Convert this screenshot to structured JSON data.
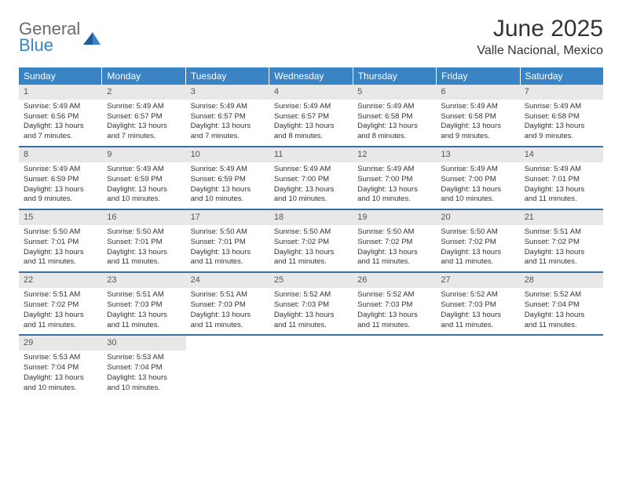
{
  "logo": {
    "general": "General",
    "blue": "Blue"
  },
  "title": "June 2025",
  "location": "Valle Nacional, Mexico",
  "colors": {
    "header_bg": "#3a84c5",
    "header_text": "#ffffff",
    "daynum_bg": "#e8e8e8",
    "row_border": "#3a6ea5",
    "text": "#333333",
    "logo_gray": "#6b6b6b",
    "logo_blue": "#3a84c5"
  },
  "day_names": [
    "Sunday",
    "Monday",
    "Tuesday",
    "Wednesday",
    "Thursday",
    "Friday",
    "Saturday"
  ],
  "weeks": [
    [
      {
        "n": "1",
        "sunrise": "5:49 AM",
        "sunset": "6:56 PM",
        "day_h": "13",
        "day_m": "7"
      },
      {
        "n": "2",
        "sunrise": "5:49 AM",
        "sunset": "6:57 PM",
        "day_h": "13",
        "day_m": "7"
      },
      {
        "n": "3",
        "sunrise": "5:49 AM",
        "sunset": "6:57 PM",
        "day_h": "13",
        "day_m": "7"
      },
      {
        "n": "4",
        "sunrise": "5:49 AM",
        "sunset": "6:57 PM",
        "day_h": "13",
        "day_m": "8"
      },
      {
        "n": "5",
        "sunrise": "5:49 AM",
        "sunset": "6:58 PM",
        "day_h": "13",
        "day_m": "8"
      },
      {
        "n": "6",
        "sunrise": "5:49 AM",
        "sunset": "6:58 PM",
        "day_h": "13",
        "day_m": "9"
      },
      {
        "n": "7",
        "sunrise": "5:49 AM",
        "sunset": "6:58 PM",
        "day_h": "13",
        "day_m": "9"
      }
    ],
    [
      {
        "n": "8",
        "sunrise": "5:49 AM",
        "sunset": "6:59 PM",
        "day_h": "13",
        "day_m": "9"
      },
      {
        "n": "9",
        "sunrise": "5:49 AM",
        "sunset": "6:59 PM",
        "day_h": "13",
        "day_m": "10"
      },
      {
        "n": "10",
        "sunrise": "5:49 AM",
        "sunset": "6:59 PM",
        "day_h": "13",
        "day_m": "10"
      },
      {
        "n": "11",
        "sunrise": "5:49 AM",
        "sunset": "7:00 PM",
        "day_h": "13",
        "day_m": "10"
      },
      {
        "n": "12",
        "sunrise": "5:49 AM",
        "sunset": "7:00 PM",
        "day_h": "13",
        "day_m": "10"
      },
      {
        "n": "13",
        "sunrise": "5:49 AM",
        "sunset": "7:00 PM",
        "day_h": "13",
        "day_m": "10"
      },
      {
        "n": "14",
        "sunrise": "5:49 AM",
        "sunset": "7:01 PM",
        "day_h": "13",
        "day_m": "11"
      }
    ],
    [
      {
        "n": "15",
        "sunrise": "5:50 AM",
        "sunset": "7:01 PM",
        "day_h": "13",
        "day_m": "11"
      },
      {
        "n": "16",
        "sunrise": "5:50 AM",
        "sunset": "7:01 PM",
        "day_h": "13",
        "day_m": "11"
      },
      {
        "n": "17",
        "sunrise": "5:50 AM",
        "sunset": "7:01 PM",
        "day_h": "13",
        "day_m": "11"
      },
      {
        "n": "18",
        "sunrise": "5:50 AM",
        "sunset": "7:02 PM",
        "day_h": "13",
        "day_m": "11"
      },
      {
        "n": "19",
        "sunrise": "5:50 AM",
        "sunset": "7:02 PM",
        "day_h": "13",
        "day_m": "11"
      },
      {
        "n": "20",
        "sunrise": "5:50 AM",
        "sunset": "7:02 PM",
        "day_h": "13",
        "day_m": "11"
      },
      {
        "n": "21",
        "sunrise": "5:51 AM",
        "sunset": "7:02 PM",
        "day_h": "13",
        "day_m": "11"
      }
    ],
    [
      {
        "n": "22",
        "sunrise": "5:51 AM",
        "sunset": "7:02 PM",
        "day_h": "13",
        "day_m": "11"
      },
      {
        "n": "23",
        "sunrise": "5:51 AM",
        "sunset": "7:03 PM",
        "day_h": "13",
        "day_m": "11"
      },
      {
        "n": "24",
        "sunrise": "5:51 AM",
        "sunset": "7:03 PM",
        "day_h": "13",
        "day_m": "11"
      },
      {
        "n": "25",
        "sunrise": "5:52 AM",
        "sunset": "7:03 PM",
        "day_h": "13",
        "day_m": "11"
      },
      {
        "n": "26",
        "sunrise": "5:52 AM",
        "sunset": "7:03 PM",
        "day_h": "13",
        "day_m": "11"
      },
      {
        "n": "27",
        "sunrise": "5:52 AM",
        "sunset": "7:03 PM",
        "day_h": "13",
        "day_m": "11"
      },
      {
        "n": "28",
        "sunrise": "5:52 AM",
        "sunset": "7:04 PM",
        "day_h": "13",
        "day_m": "11"
      }
    ],
    [
      {
        "n": "29",
        "sunrise": "5:53 AM",
        "sunset": "7:04 PM",
        "day_h": "13",
        "day_m": "10"
      },
      {
        "n": "30",
        "sunrise": "5:53 AM",
        "sunset": "7:04 PM",
        "day_h": "13",
        "day_m": "10"
      },
      null,
      null,
      null,
      null,
      null
    ]
  ],
  "labels": {
    "sunrise": "Sunrise:",
    "sunset": "Sunset:",
    "daylight": "Daylight:",
    "hours": "hours",
    "and": "and",
    "minutes": "minutes."
  }
}
